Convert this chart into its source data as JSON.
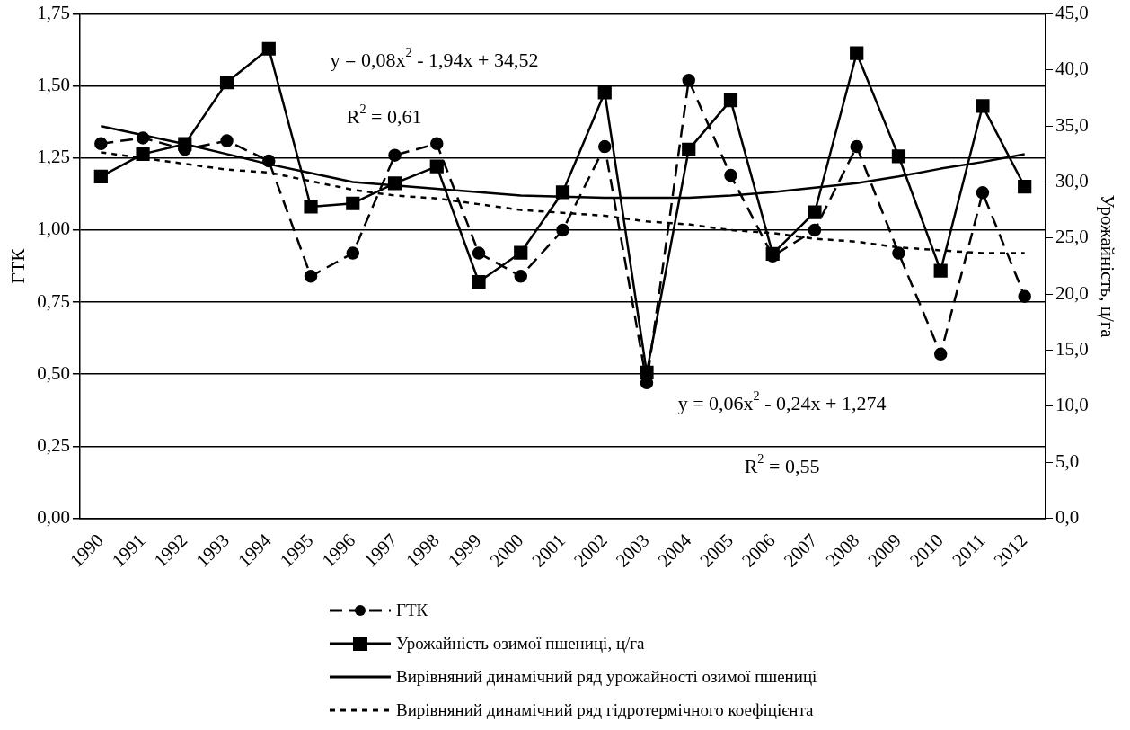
{
  "chart_data": {
    "type": "line",
    "ylabel": "ГТК",
    "y2label": "Урожайність, ц/га",
    "categories": [
      "1990",
      "1991",
      "1992",
      "1993",
      "1994",
      "1995",
      "1996",
      "1997",
      "1998",
      "1999",
      "2000",
      "2001",
      "2002",
      "2003",
      "2004",
      "2005",
      "2006",
      "2007",
      "2008",
      "2009",
      "2010",
      "2011",
      "2012"
    ],
    "series": [
      {
        "name": "ГТК",
        "color": "#000000",
        "marker": "circle",
        "line_style": "dashed",
        "values": [
          1.3,
          1.32,
          1.28,
          1.31,
          1.24,
          0.84,
          0.92,
          1.26,
          1.3,
          0.92,
          0.84,
          1.0,
          1.29,
          0.47,
          1.52,
          1.19,
          0.91,
          1.0,
          1.29,
          0.92,
          0.57,
          1.13,
          0.77
        ]
      },
      {
        "name": "Урожайність озимої пшениці, ц/га",
        "color": "#000000",
        "marker": "square",
        "line_style": "solid",
        "axis": "y2",
        "values": [
          30.5,
          32.5,
          33.4,
          38.9,
          41.9,
          27.8,
          28.1,
          29.9,
          31.4,
          21.1,
          23.7,
          29.1,
          38.0,
          13.0,
          32.9,
          37.3,
          23.6,
          27.3,
          41.5,
          32.3,
          22.1,
          36.8,
          29.6
        ]
      },
      {
        "name": "Вирівняний динамічний ряд урожайності озимої пшениці",
        "color": "#000000",
        "marker": "none",
        "line_style": "solid",
        "axis": "y2",
        "values": [
          35.0,
          34.2,
          33.4,
          32.5,
          31.6,
          30.8,
          30.0,
          29.7,
          29.4,
          29.1,
          28.8,
          28.7,
          28.6,
          28.6,
          28.6,
          28.8,
          29.1,
          29.5,
          29.9,
          30.5,
          31.2,
          31.8,
          32.5
        ]
      },
      {
        "name": "Вирівняний динамічний ряд гідротермічного коефіцієнта",
        "color": "#000000",
        "marker": "none",
        "line_style": "dotted",
        "values": [
          1.27,
          1.25,
          1.23,
          1.21,
          1.2,
          1.17,
          1.14,
          1.12,
          1.11,
          1.09,
          1.07,
          1.06,
          1.05,
          1.03,
          1.02,
          1.0,
          0.99,
          0.97,
          0.96,
          0.94,
          0.93,
          0.92,
          0.92
        ]
      }
    ],
    "ylim": [
      0,
      1.75
    ],
    "yticks": [
      {
        "value": 0,
        "label": "0,00"
      },
      {
        "value": 0.25,
        "label": "0,25"
      },
      {
        "value": 0.5,
        "label": "0,50"
      },
      {
        "value": 0.75,
        "label": "0,75"
      },
      {
        "value": 1,
        "label": "1,00"
      },
      {
        "value": 1.25,
        "label": "1,25"
      },
      {
        "value": 1.5,
        "label": "1,50"
      },
      {
        "value": 1.75,
        "label": "1,75"
      }
    ],
    "y2lim": [
      0,
      45
    ],
    "y2ticks": [
      {
        "value": 0,
        "label": "0,0"
      },
      {
        "value": 5,
        "label": "5,0"
      },
      {
        "value": 10,
        "label": "10,0"
      },
      {
        "value": 15,
        "label": "15,0"
      },
      {
        "value": 20,
        "label": "20,0"
      },
      {
        "value": 25,
        "label": "25,0"
      },
      {
        "value": 30,
        "label": "30,0"
      },
      {
        "value": 35,
        "label": "35,0"
      },
      {
        "value": 40,
        "label": "40,0"
      },
      {
        "value": 45,
        "label": "45,0"
      }
    ],
    "grid": "y",
    "legend": "bottom",
    "annotations": [
      "y = 0,08x$^{2}$ - 1,94x + 34,52",
      "R$^{2}$ = 0,61",
      "y = 0,06x$^{2}$ - 0,24x + 1,274",
      "R$^{2}$ = 0,55"
    ]
  }
}
